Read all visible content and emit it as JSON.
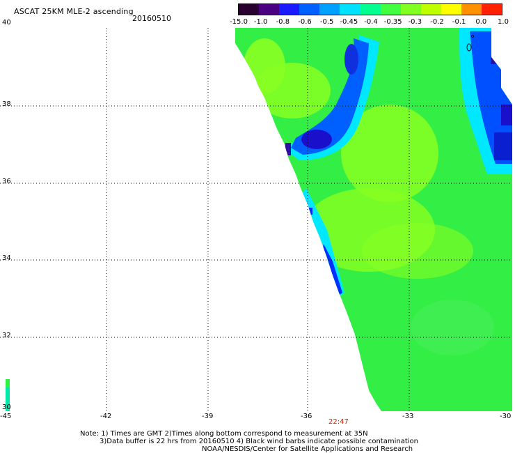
{
  "header": {
    "title": "ASCAT 25KM MLE-2 ascending",
    "date": "20160510"
  },
  "colorbar": {
    "labels": [
      "-15.0",
      "-1.0",
      "-0.8",
      "-0.6",
      "-0.5",
      "-0.45",
      "-0.4",
      "-0.35",
      "-0.3",
      "-0.2",
      "-0.1",
      "0.0",
      "1.0"
    ],
    "colors": [
      "#2a0030",
      "#4a0080",
      "#1a1aff",
      "#0060ff",
      "#00a0ff",
      "#00e0ff",
      "#00ff90",
      "#40ff40",
      "#80ff20",
      "#c0ff00",
      "#ffff00",
      "#ff9000",
      "#ff2000"
    ]
  },
  "axes": {
    "x_ticks": [
      "-45",
      "-42",
      "-39",
      "-36",
      "-33",
      "-30"
    ],
    "y_ticks": [
      "40",
      "38",
      "36",
      "34",
      "32",
      "30"
    ],
    "x_range": [
      -45,
      -30
    ],
    "y_range": [
      30,
      40
    ]
  },
  "time_label": "22:47",
  "footer": {
    "line1": "Note: 1) Times are GMT 2)Times along bottom correspond to measurement at 35N",
    "line2": "3)Data buffer is 22 hrs from 20160510 4) Black wind barbs indicate possible contamination",
    "line3": "NOAA/NESDIS/Center for Satellite Applications and Research"
  },
  "colors": {
    "green": "#33ee44",
    "lime": "#88ff22",
    "cyan": "#00eeff",
    "blue": "#0044ff",
    "deep_blue": "#1a10cc",
    "time_red": "#cc2200"
  }
}
